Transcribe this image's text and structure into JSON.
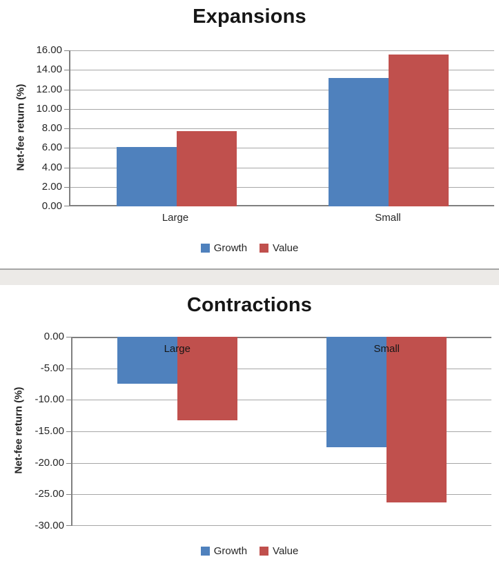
{
  "chart_data": [
    {
      "type": "bar",
      "title": "Expansions",
      "ylabel": "Net-fee return (%)",
      "categories": [
        "Large",
        "Small"
      ],
      "series": [
        {
          "name": "Growth",
          "color": "#4F81BD",
          "values": [
            6.1,
            13.2
          ]
        },
        {
          "name": "Value",
          "color": "#C0504D",
          "values": [
            7.7,
            15.6
          ]
        }
      ],
      "ylim": [
        0,
        16
      ],
      "ytick_step": 2,
      "ytick_decimals": 2,
      "grid": true,
      "legend_position": "bottom",
      "category_labels_inside": false
    },
    {
      "type": "bar",
      "title": "Contractions",
      "ylabel": "Net-fee return (%)",
      "categories": [
        "Large",
        "Small"
      ],
      "series": [
        {
          "name": "Growth",
          "color": "#4F81BD",
          "values": [
            -7.4,
            -17.5
          ]
        },
        {
          "name": "Value",
          "color": "#C0504D",
          "values": [
            -13.3,
            -26.3
          ]
        }
      ],
      "ylim": [
        -30,
        0
      ],
      "ytick_step": 5,
      "ytick_decimals": 2,
      "grid": true,
      "legend_position": "bottom",
      "category_labels_inside": true
    }
  ],
  "divider": {
    "color": "#ECEAE7"
  }
}
